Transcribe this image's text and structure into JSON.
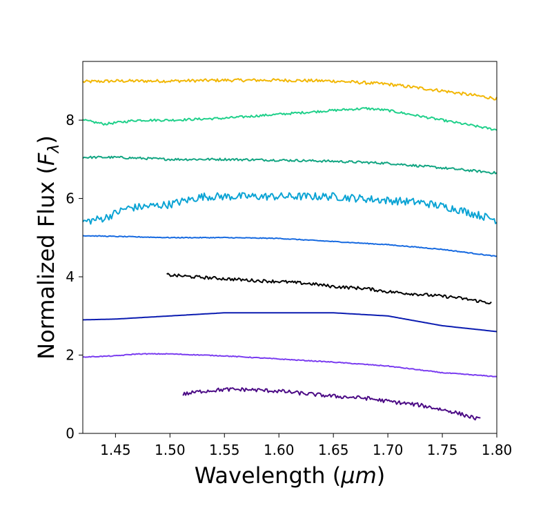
{
  "chart_data": {
    "type": "line",
    "title": "",
    "xlabel_prefix": "Wavelength (",
    "xlabel_unit": "μm",
    "xlabel_suffix": ")",
    "ylabel_prefix": "Normalized Flux  (",
    "ylabel_symbol": "F",
    "ylabel_sub": "λ",
    "ylabel_suffix": ")",
    "xlim": [
      1.42,
      1.8
    ],
    "ylim": [
      0,
      9.5
    ],
    "xticks": [
      1.45,
      1.5,
      1.55,
      1.6,
      1.65,
      1.7,
      1.75,
      1.8
    ],
    "xtick_labels": [
      "1.45",
      "1.50",
      "1.55",
      "1.60",
      "1.65",
      "1.70",
      "1.75",
      "1.80"
    ],
    "yticks": [
      0,
      2,
      4,
      6,
      8
    ],
    "ytick_labels": [
      "0",
      "2",
      "4",
      "6",
      "8"
    ],
    "grid": false,
    "series": [
      {
        "color": "#f2b705",
        "noise": 0.04,
        "x": [
          1.42,
          1.45,
          1.5,
          1.55,
          1.6,
          1.65,
          1.7,
          1.75,
          1.8
        ],
        "y": [
          8.98,
          9.0,
          9.0,
          9.02,
          9.02,
          9.0,
          8.92,
          8.75,
          8.55
        ]
      },
      {
        "color": "#1fd08a",
        "noise": 0.03,
        "x": [
          1.42,
          1.44,
          1.47,
          1.5,
          1.55,
          1.6,
          1.65,
          1.68,
          1.7,
          1.75,
          1.8
        ],
        "y": [
          8.0,
          7.9,
          8.0,
          8.0,
          8.05,
          8.15,
          8.25,
          8.3,
          8.25,
          8.0,
          7.75
        ]
      },
      {
        "color": "#12a582",
        "noise": 0.03,
        "x": [
          1.42,
          1.45,
          1.5,
          1.55,
          1.6,
          1.65,
          1.7,
          1.75,
          1.8
        ],
        "y": [
          7.05,
          7.05,
          7.0,
          7.0,
          6.98,
          6.95,
          6.9,
          6.78,
          6.65
        ]
      },
      {
        "color": "#0aa3d4",
        "noise": 0.1,
        "x": [
          1.42,
          1.44,
          1.46,
          1.48,
          1.5,
          1.53,
          1.55,
          1.6,
          1.65,
          1.7,
          1.73,
          1.76,
          1.78,
          1.8
        ],
        "y": [
          5.4,
          5.5,
          5.75,
          5.8,
          5.85,
          6.05,
          6.05,
          6.05,
          6.05,
          5.95,
          5.9,
          5.75,
          5.6,
          5.45
        ]
      },
      {
        "color": "#1569e0",
        "noise": 0.01,
        "x": [
          1.42,
          1.45,
          1.5,
          1.55,
          1.6,
          1.65,
          1.7,
          1.75,
          1.8
        ],
        "y": [
          5.05,
          5.03,
          5.0,
          5.0,
          4.98,
          4.9,
          4.82,
          4.7,
          4.52
        ]
      },
      {
        "color": "#000000",
        "noise": 0.04,
        "x": [
          1.497,
          1.52,
          1.55,
          1.58,
          1.6,
          1.63,
          1.65,
          1.68,
          1.7,
          1.73,
          1.76,
          1.795
        ],
        "y": [
          4.05,
          4.0,
          3.95,
          3.9,
          3.88,
          3.82,
          3.75,
          3.7,
          3.62,
          3.55,
          3.48,
          3.33
        ]
      },
      {
        "color": "#0a1bb0",
        "noise": 0.0,
        "x": [
          1.42,
          1.45,
          1.5,
          1.55,
          1.6,
          1.65,
          1.7,
          1.75,
          1.8
        ],
        "y": [
          2.9,
          2.92,
          3.0,
          3.08,
          3.08,
          3.08,
          3.0,
          2.75,
          2.6
        ]
      },
      {
        "color": "#7a3cf0",
        "noise": 0.01,
        "x": [
          1.42,
          1.45,
          1.47,
          1.5,
          1.55,
          1.6,
          1.65,
          1.7,
          1.75,
          1.8
        ],
        "y": [
          1.95,
          1.98,
          2.03,
          2.03,
          1.98,
          1.9,
          1.82,
          1.72,
          1.55,
          1.45
        ]
      },
      {
        "color": "#4b0a85",
        "noise": 0.05,
        "x": [
          1.512,
          1.53,
          1.55,
          1.57,
          1.6,
          1.63,
          1.65,
          1.68,
          1.7,
          1.73,
          1.76,
          1.785
        ],
        "y": [
          1.0,
          1.08,
          1.12,
          1.12,
          1.08,
          1.0,
          0.95,
          0.9,
          0.82,
          0.72,
          0.55,
          0.35
        ]
      }
    ]
  }
}
